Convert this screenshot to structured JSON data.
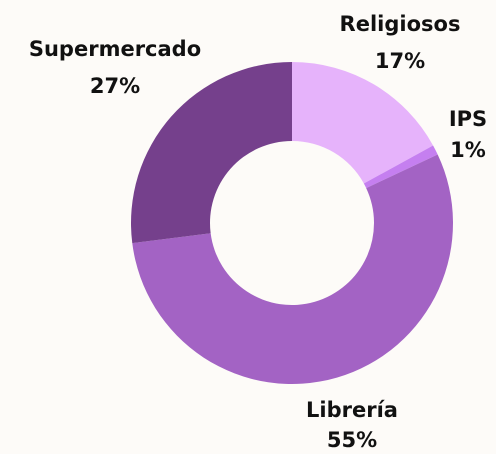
{
  "chart_data": {
    "type": "donut",
    "categories": [
      "Religiosos",
      "IPS",
      "Librería",
      "Supermercado"
    ],
    "values": [
      17,
      1,
      55,
      27
    ],
    "value_labels": [
      "17%",
      "1%",
      "55%",
      "27%"
    ],
    "colors": [
      "#e6b3fb",
      "#c57ff0",
      "#a363c4",
      "#75408c"
    ]
  }
}
